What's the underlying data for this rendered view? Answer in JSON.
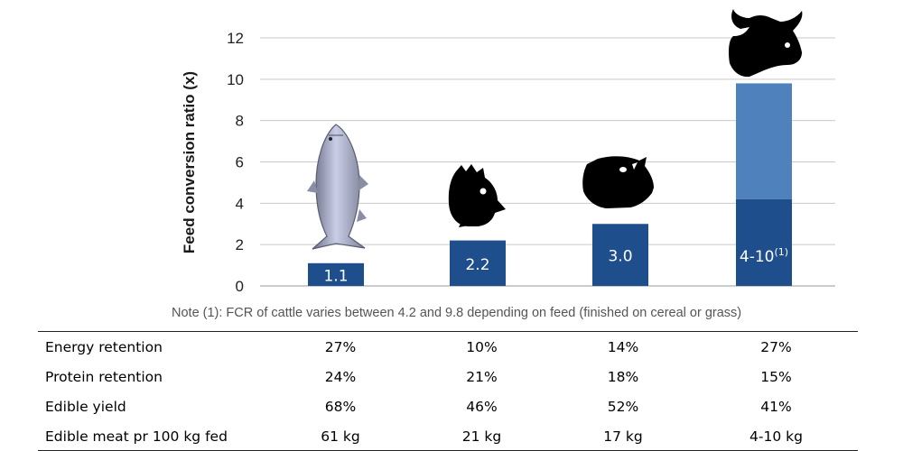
{
  "chart_data": {
    "type": "bar",
    "ylabel": "Feed conversion ratio (x)",
    "ylim": [
      0,
      12
    ],
    "yticks": [
      "0",
      "2",
      "4",
      "6",
      "8",
      "10",
      "12"
    ],
    "grid": true,
    "categories": [
      "Salmon",
      "Chicken",
      "Pig",
      "Cattle"
    ],
    "values": [
      1.1,
      2.2,
      3.0,
      9.8
    ],
    "stack_lower": [
      null,
      null,
      null,
      4.2
    ],
    "bar_labels": [
      "1.1",
      "2.2",
      "3.0",
      "4-10"
    ],
    "bar_label_superscript": [
      "",
      "",
      "",
      "(1)"
    ],
    "icons": [
      "salmon-icon",
      "chicken-icon",
      "pig-icon",
      "cow-icon"
    ],
    "colors": {
      "bar": "#1f4e8c",
      "bar_upper": "#4f81bd",
      "grid": "#c9c9c9",
      "label": "#ffffff"
    }
  },
  "note": "Note (1): FCR of cattle varies between 4.2 and 9.8 depending on feed (finished on cereal or grass)",
  "table": {
    "rows": [
      {
        "label": "Energy retention",
        "values": [
          "27%",
          "10%",
          "14%",
          "27%"
        ]
      },
      {
        "label": "Protein retention",
        "values": [
          "24%",
          "21%",
          "18%",
          "15%"
        ]
      },
      {
        "label": "Edible yield",
        "values": [
          "68%",
          "46%",
          "52%",
          "41%"
        ]
      },
      {
        "label": "Edible meat pr 100 kg fed",
        "values": [
          "61 kg",
          "21 kg",
          "17 kg",
          "4-10 kg"
        ]
      }
    ]
  }
}
